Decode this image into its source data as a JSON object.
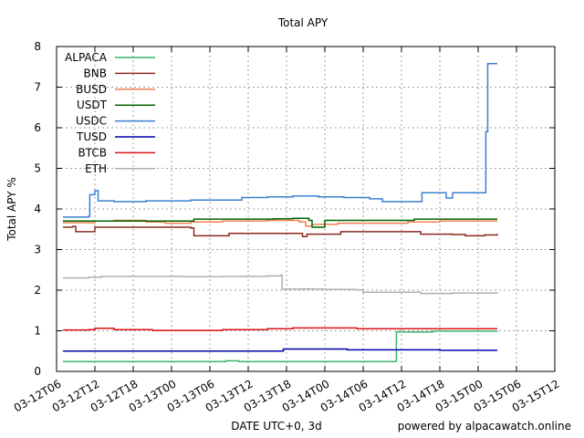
{
  "chart_data": {
    "type": "line",
    "title": "Total APY",
    "xlabel": "DATE UTC+0, 3d",
    "ylabel": "Total APY %",
    "credit": "powered by alpacawatch.online",
    "ylim": [
      0,
      8
    ],
    "yticks": [
      "0",
      "1",
      "2",
      "3",
      "4",
      "5",
      "6",
      "7",
      "8"
    ],
    "xlim": [
      0,
      72
    ],
    "xticks": [
      {
        "label": "03-12T06",
        "h": 0
      },
      {
        "label": "03-12T12",
        "h": 6
      },
      {
        "label": "03-12T18",
        "h": 12
      },
      {
        "label": "03-13T00",
        "h": 18
      },
      {
        "label": "03-13T06",
        "h": 24
      },
      {
        "label": "03-13T12",
        "h": 30
      },
      {
        "label": "03-13T18",
        "h": 36
      },
      {
        "label": "03-14T00",
        "h": 42
      },
      {
        "label": "03-14T06",
        "h": 48
      },
      {
        "label": "03-14T12",
        "h": 54
      },
      {
        "label": "03-14T18",
        "h": 60
      },
      {
        "label": "03-15T00",
        "h": 66
      },
      {
        "label": "03-15T06",
        "h": 72
      },
      {
        "label": "03-15T12",
        "h": 78
      }
    ],
    "legend_position": "top-left",
    "series": [
      {
        "name": "ALPACA",
        "color": "#3cb371",
        "points": [
          [
            1,
            0.24
          ],
          [
            26,
            0.24
          ],
          [
            26.5,
            0.26
          ],
          [
            28,
            0.26
          ],
          [
            28.5,
            0.24
          ],
          [
            53,
            0.24
          ],
          [
            53.2,
            0.97
          ],
          [
            59,
            0.99
          ],
          [
            69,
            1.0
          ]
        ]
      },
      {
        "name": "BNB",
        "color": "#8b2a1f",
        "points": [
          [
            1,
            3.55
          ],
          [
            2.5,
            3.57
          ],
          [
            3,
            3.44
          ],
          [
            5,
            3.44
          ],
          [
            6,
            3.55
          ],
          [
            21,
            3.53
          ],
          [
            21.5,
            3.34
          ],
          [
            26,
            3.34
          ],
          [
            27,
            3.4
          ],
          [
            38,
            3.4
          ],
          [
            38.5,
            3.32
          ],
          [
            39.2,
            3.38
          ],
          [
            44,
            3.38
          ],
          [
            44.5,
            3.44
          ],
          [
            55,
            3.44
          ],
          [
            57,
            3.38
          ],
          [
            62,
            3.37
          ],
          [
            64,
            3.34
          ],
          [
            67,
            3.36
          ],
          [
            69,
            3.39
          ]
        ]
      },
      {
        "name": "BUSD",
        "color": "#f08050",
        "points": [
          [
            1,
            3.66
          ],
          [
            6,
            3.7
          ],
          [
            9,
            3.72
          ],
          [
            14,
            3.68
          ],
          [
            17,
            3.65
          ],
          [
            21,
            3.68
          ],
          [
            26,
            3.7
          ],
          [
            33,
            3.72
          ],
          [
            38,
            3.68
          ],
          [
            39,
            3.58
          ],
          [
            40,
            3.62
          ],
          [
            44,
            3.65
          ],
          [
            55,
            3.68
          ],
          [
            60,
            3.7
          ],
          [
            69,
            3.7
          ]
        ]
      },
      {
        "name": "USDT",
        "color": "#006400",
        "points": [
          [
            1,
            3.7
          ],
          [
            21,
            3.7
          ],
          [
            21.5,
            3.75
          ],
          [
            34,
            3.76
          ],
          [
            37,
            3.77
          ],
          [
            39.5,
            3.72
          ],
          [
            40,
            3.55
          ],
          [
            41.5,
            3.55
          ],
          [
            42,
            3.72
          ],
          [
            52,
            3.72
          ],
          [
            56,
            3.75
          ],
          [
            69,
            3.75
          ]
        ]
      },
      {
        "name": "USDC",
        "color": "#3a80d0",
        "points": [
          [
            1,
            3.8
          ],
          [
            5,
            3.82
          ],
          [
            5.2,
            4.35
          ],
          [
            6,
            4.45
          ],
          [
            6.5,
            4.2
          ],
          [
            9,
            4.18
          ],
          [
            14,
            4.2
          ],
          [
            21,
            4.22
          ],
          [
            26,
            4.22
          ],
          [
            29,
            4.28
          ],
          [
            33,
            4.3
          ],
          [
            37,
            4.32
          ],
          [
            41,
            4.3
          ],
          [
            45,
            4.28
          ],
          [
            49,
            4.25
          ],
          [
            51,
            4.18
          ],
          [
            57,
            4.18
          ],
          [
            57.2,
            4.4
          ],
          [
            60,
            4.4
          ],
          [
            61,
            4.27
          ],
          [
            62,
            4.4
          ],
          [
            67,
            4.4
          ],
          [
            67.2,
            5.9
          ],
          [
            67.5,
            7.58
          ],
          [
            69,
            7.58
          ]
        ]
      },
      {
        "name": "TUSD",
        "color": "#0000aa",
        "points": [
          [
            1,
            0.5
          ],
          [
            35,
            0.5
          ],
          [
            35.5,
            0.55
          ],
          [
            45,
            0.55
          ],
          [
            45.5,
            0.53
          ],
          [
            60,
            0.52
          ],
          [
            69,
            0.52
          ]
        ]
      },
      {
        "name": "BTCB",
        "color": "#dd1111",
        "points": [
          [
            1,
            1.02
          ],
          [
            5,
            1.03
          ],
          [
            6,
            1.06
          ],
          [
            9,
            1.03
          ],
          [
            15,
            1.01
          ],
          [
            21,
            1.01
          ],
          [
            26,
            1.03
          ],
          [
            33,
            1.05
          ],
          [
            37,
            1.07
          ],
          [
            41,
            1.07
          ],
          [
            47,
            1.05
          ],
          [
            53,
            1.05
          ],
          [
            58,
            1.05
          ],
          [
            69,
            1.05
          ]
        ]
      },
      {
        "name": "ETH",
        "color": "#b0b0b0",
        "points": [
          [
            1,
            2.3
          ],
          [
            5,
            2.32
          ],
          [
            7,
            2.34
          ],
          [
            20,
            2.33
          ],
          [
            26,
            2.34
          ],
          [
            33,
            2.35
          ],
          [
            35,
            2.37
          ],
          [
            35.3,
            2.03
          ],
          [
            42,
            2.02
          ],
          [
            47,
            2.01
          ],
          [
            48,
            1.95
          ],
          [
            53,
            1.95
          ],
          [
            57,
            1.92
          ],
          [
            62,
            1.93
          ],
          [
            66,
            1.93
          ],
          [
            69,
            1.95
          ]
        ]
      }
    ]
  }
}
